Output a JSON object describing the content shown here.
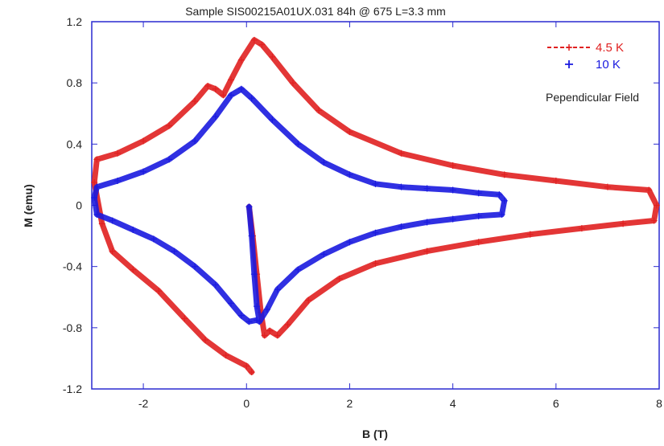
{
  "chart_data": {
    "type": "scatter",
    "title": "Sample SIS00215A01UX.031 84h @ 675 L=3.3 mm",
    "xlabel": "B (T)",
    "ylabel": "M (emu)",
    "xlim": [
      -3,
      8
    ],
    "ylim": [
      -1.2,
      1.2
    ],
    "x_ticks": [
      -2,
      0,
      2,
      4,
      6,
      8
    ],
    "x_tick_labels": [
      "-2",
      "0",
      "2",
      "4",
      "6",
      "8"
    ],
    "y_ticks": [
      -1.2,
      -0.8,
      -0.4,
      0,
      0.4,
      0.8,
      1.2
    ],
    "y_tick_labels": [
      "-1.2",
      "-0.8",
      "-0.4",
      "0",
      "0.4",
      "0.8",
      "1.2"
    ],
    "grid": false,
    "legend_position": "top-right",
    "annotation": "Pependicular Field",
    "series": [
      {
        "name": "4.5 K",
        "color": "#e02020",
        "marker": "plus-dashed",
        "points": [
          [
            0.05,
            -0.01
          ],
          [
            0.12,
            -0.2
          ],
          [
            0.2,
            -0.45
          ],
          [
            0.28,
            -0.7
          ],
          [
            0.35,
            -0.85
          ],
          [
            0.45,
            -0.82
          ],
          [
            0.6,
            -0.85
          ],
          [
            0.8,
            -0.78
          ],
          [
            1.2,
            -0.62
          ],
          [
            1.8,
            -0.48
          ],
          [
            2.5,
            -0.38
          ],
          [
            3.5,
            -0.3
          ],
          [
            4.5,
            -0.24
          ],
          [
            5.5,
            -0.19
          ],
          [
            6.5,
            -0.15
          ],
          [
            7.3,
            -0.12
          ],
          [
            7.9,
            -0.1
          ],
          [
            7.95,
            0.0
          ],
          [
            7.8,
            0.1
          ],
          [
            7.0,
            0.12
          ],
          [
            6.0,
            0.16
          ],
          [
            5.0,
            0.2
          ],
          [
            4.0,
            0.26
          ],
          [
            3.0,
            0.34
          ],
          [
            2.0,
            0.48
          ],
          [
            1.4,
            0.62
          ],
          [
            0.9,
            0.8
          ],
          [
            0.5,
            0.97
          ],
          [
            0.3,
            1.05
          ],
          [
            0.15,
            1.08
          ],
          [
            -0.1,
            0.95
          ],
          [
            -0.3,
            0.82
          ],
          [
            -0.45,
            0.72
          ],
          [
            -0.6,
            0.76
          ],
          [
            -0.75,
            0.78
          ],
          [
            -1.0,
            0.68
          ],
          [
            -1.5,
            0.52
          ],
          [
            -2.0,
            0.42
          ],
          [
            -2.5,
            0.34
          ],
          [
            -2.9,
            0.3
          ],
          [
            -2.95,
            0.15
          ],
          [
            -2.8,
            -0.12
          ],
          [
            -2.6,
            -0.3
          ],
          [
            -2.2,
            -0.42
          ],
          [
            -1.7,
            -0.56
          ],
          [
            -1.2,
            -0.74
          ],
          [
            -0.8,
            -0.88
          ],
          [
            -0.4,
            -0.98
          ],
          [
            0.0,
            -1.05
          ],
          [
            0.1,
            -1.09
          ]
        ]
      },
      {
        "name": "10 K",
        "color": "#1a1adf",
        "marker": "plus",
        "points": [
          [
            0.05,
            -0.01
          ],
          [
            0.1,
            -0.2
          ],
          [
            0.15,
            -0.45
          ],
          [
            0.2,
            -0.66
          ],
          [
            0.25,
            -0.76
          ],
          [
            0.4,
            -0.68
          ],
          [
            0.6,
            -0.55
          ],
          [
            1.0,
            -0.42
          ],
          [
            1.5,
            -0.32
          ],
          [
            2.0,
            -0.24
          ],
          [
            2.5,
            -0.18
          ],
          [
            3.0,
            -0.14
          ],
          [
            3.5,
            -0.11
          ],
          [
            4.0,
            -0.09
          ],
          [
            4.5,
            -0.07
          ],
          [
            4.95,
            -0.06
          ],
          [
            5.0,
            0.03
          ],
          [
            4.9,
            0.07
          ],
          [
            4.5,
            0.08
          ],
          [
            4.0,
            0.1
          ],
          [
            3.5,
            0.11
          ],
          [
            3.0,
            0.12
          ],
          [
            2.5,
            0.14
          ],
          [
            2.0,
            0.2
          ],
          [
            1.5,
            0.28
          ],
          [
            1.0,
            0.4
          ],
          [
            0.5,
            0.56
          ],
          [
            0.1,
            0.7
          ],
          [
            -0.1,
            0.76
          ],
          [
            -0.3,
            0.72
          ],
          [
            -0.6,
            0.58
          ],
          [
            -1.0,
            0.42
          ],
          [
            -1.5,
            0.3
          ],
          [
            -2.0,
            0.22
          ],
          [
            -2.5,
            0.16
          ],
          [
            -2.9,
            0.12
          ],
          [
            -2.95,
            0.05
          ],
          [
            -2.9,
            -0.06
          ],
          [
            -2.6,
            -0.1
          ],
          [
            -2.2,
            -0.16
          ],
          [
            -1.8,
            -0.22
          ],
          [
            -1.4,
            -0.3
          ],
          [
            -1.0,
            -0.4
          ],
          [
            -0.6,
            -0.52
          ],
          [
            -0.3,
            -0.64
          ],
          [
            -0.1,
            -0.72
          ],
          [
            0.05,
            -0.76
          ],
          [
            0.2,
            -0.75
          ]
        ]
      }
    ]
  }
}
